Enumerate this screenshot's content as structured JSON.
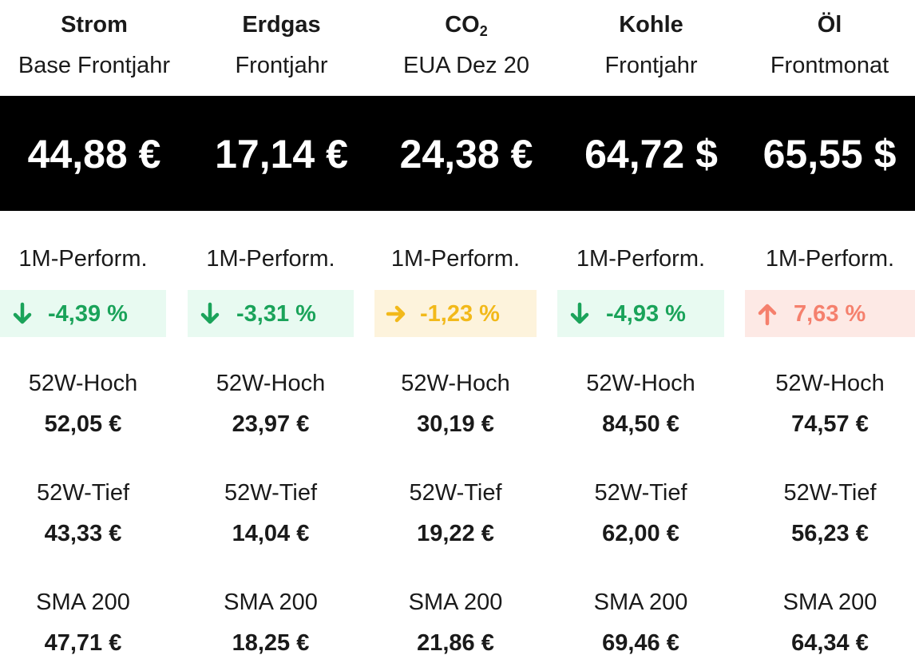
{
  "columns": [
    {
      "name": "Strom",
      "name_sub": "",
      "subtitle": "Base Frontjahr",
      "price": "44,88 €",
      "perf_label": "1M-Perform.",
      "perf_value": "-4,39 %",
      "perf_direction": "down-icon",
      "perf_color": "#1aa35a",
      "perf_bg": "#e8faf1",
      "high_label": "52W-Hoch",
      "high_value": "52,05 €",
      "low_label": "52W-Tief",
      "low_value": "43,33 €",
      "sma_label": "SMA 200",
      "sma_value": "47,71 €"
    },
    {
      "name": "Erdgas",
      "name_sub": "",
      "subtitle": "Frontjahr",
      "price": "17,14 €",
      "perf_label": "1M-Perform.",
      "perf_value": "-3,31 %",
      "perf_direction": "down-icon",
      "perf_color": "#1aa35a",
      "perf_bg": "#e8faf1",
      "high_label": "52W-Hoch",
      "high_value": "23,97 €",
      "low_label": "52W-Tief",
      "low_value": "14,04 €",
      "sma_label": "SMA 200",
      "sma_value": "18,25 €"
    },
    {
      "name": "CO",
      "name_sub": "2",
      "subtitle": "EUA Dez 20",
      "price": "24,38 €",
      "perf_label": "1M-Perform.",
      "perf_value": "-1,23 %",
      "perf_direction": "right-icon",
      "perf_color": "#f2b91a",
      "perf_bg": "#fdf3dc",
      "high_label": "52W-Hoch",
      "high_value": "30,19 €",
      "low_label": "52W-Tief",
      "low_value": "19,22 €",
      "sma_label": "SMA 200",
      "sma_value": "21,86 €"
    },
    {
      "name": "Kohle",
      "name_sub": "",
      "subtitle": "Frontjahr",
      "price": "64,72 $",
      "perf_label": "1M-Perform.",
      "perf_value": "-4,93 %",
      "perf_direction": "down-icon",
      "perf_color": "#1aa35a",
      "perf_bg": "#e8faf1",
      "high_label": "52W-Hoch",
      "high_value": "84,50 €",
      "low_label": "52W-Tief",
      "low_value": "62,00 €",
      "sma_label": "SMA 200",
      "sma_value": "69,46 €"
    },
    {
      "name": "Öl",
      "name_sub": "",
      "subtitle": "Frontmonat",
      "price": "65,55 $",
      "perf_label": "1M-Perform.",
      "perf_value": "7,63 %",
      "perf_direction": "up-icon",
      "perf_color": "#f5806d",
      "perf_bg": "#fde9e5",
      "high_label": "52W-Hoch",
      "high_value": "74,57 €",
      "low_label": "52W-Tief",
      "low_value": "56,23 €",
      "sma_label": "SMA 200",
      "sma_value": "64,34 €"
    }
  ]
}
